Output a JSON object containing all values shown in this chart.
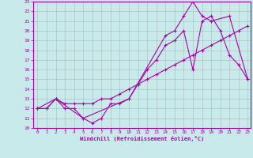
{
  "xlabel": "Windchill (Refroidissement éolien,°C)",
  "bg_color": "#c8eaea",
  "line_color": "#aa00aa",
  "grid_color": "#999999",
  "xlim": [
    -0.5,
    23.3
  ],
  "ylim": [
    10,
    23
  ],
  "xticks": [
    0,
    1,
    2,
    3,
    4,
    5,
    6,
    7,
    8,
    9,
    10,
    11,
    12,
    13,
    14,
    15,
    16,
    17,
    18,
    19,
    20,
    21,
    22,
    23
  ],
  "yticks": [
    10,
    11,
    12,
    13,
    14,
    15,
    16,
    17,
    18,
    19,
    20,
    21,
    22,
    23
  ],
  "line1_x": [
    0,
    1,
    2,
    3,
    4,
    5,
    6,
    7,
    8,
    9,
    10,
    11,
    12,
    13,
    14,
    15,
    16,
    17,
    18,
    19,
    20,
    21,
    22,
    23
  ],
  "line1_y": [
    12,
    12,
    13,
    12,
    12,
    11,
    10.5,
    11,
    12.5,
    12.5,
    13,
    14.5,
    16,
    17,
    18.5,
    19,
    20,
    16,
    21,
    21.5,
    20,
    17.5,
    16.5,
    15
  ],
  "line2_x": [
    0,
    1,
    2,
    3,
    4,
    5,
    6,
    7,
    8,
    9,
    10,
    11,
    12,
    13,
    14,
    15,
    16,
    17,
    18,
    19,
    20,
    21,
    22,
    23
  ],
  "line2_y": [
    12,
    12,
    13,
    12.5,
    12.5,
    12.5,
    12.5,
    13,
    13,
    13.5,
    14,
    14.5,
    15,
    15.5,
    16,
    16.5,
    17,
    17.5,
    18,
    18.5,
    19,
    19.5,
    20,
    20.5
  ],
  "line3_x": [
    0,
    2,
    5,
    10,
    14,
    15,
    16,
    17,
    18,
    19,
    21,
    23
  ],
  "line3_y": [
    12,
    13,
    11,
    13,
    19.5,
    20,
    21.5,
    23,
    21.5,
    21,
    21.5,
    15
  ]
}
